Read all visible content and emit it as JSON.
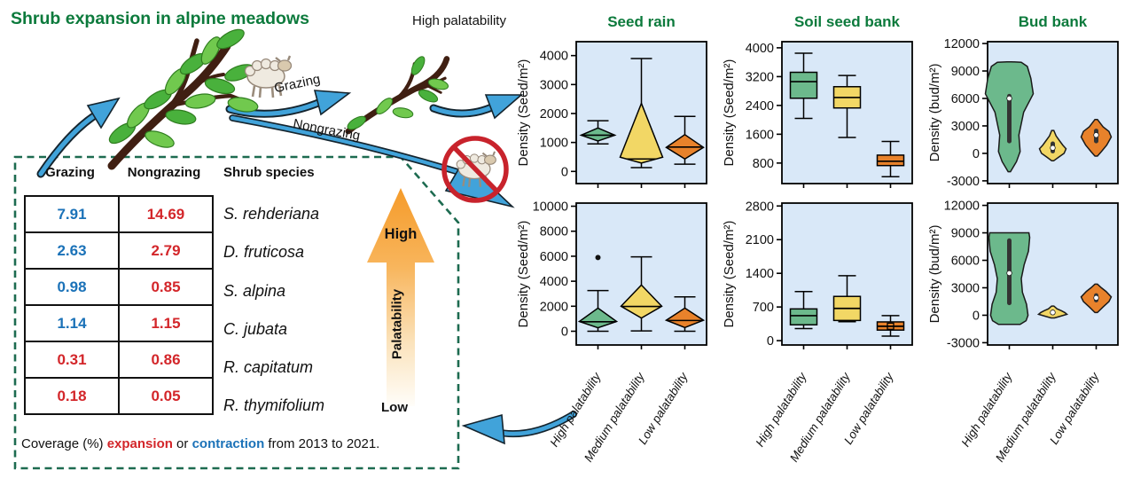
{
  "title": "Shrub expansion in alpine meadows",
  "diagram": {
    "grazing_label": "Grazing",
    "nongrazing_label": "Nongrazing",
    "high_palatability_label": "High palatability",
    "icons": [
      "sheep-icon",
      "no-grazing-icon",
      "shrub-lush",
      "shrub-grazed",
      "blue-arrows"
    ]
  },
  "table": {
    "headers": [
      "Grazing",
      "Nongrazing",
      "Shrub species"
    ],
    "rows": [
      {
        "grazing": "7.91",
        "grazing_color": "blue",
        "nongrazing": "14.69",
        "nongrazing_color": "red",
        "species": "S. rehderiana"
      },
      {
        "grazing": "2.63",
        "grazing_color": "blue",
        "nongrazing": "2.79",
        "nongrazing_color": "red",
        "species": "D. fruticosa"
      },
      {
        "grazing": "0.98",
        "grazing_color": "blue",
        "nongrazing": "0.85",
        "nongrazing_color": "red",
        "species": "S. alpina"
      },
      {
        "grazing": "1.14",
        "grazing_color": "blue",
        "nongrazing": "1.15",
        "nongrazing_color": "red",
        "species": "C. jubata"
      },
      {
        "grazing": "0.31",
        "grazing_color": "red",
        "nongrazing": "0.86",
        "nongrazing_color": "red",
        "species": "R. capitatum"
      },
      {
        "grazing": "0.18",
        "grazing_color": "red",
        "nongrazing": "0.05",
        "nongrazing_color": "red",
        "species": "R. thymifolium"
      }
    ]
  },
  "palatability_arrow": {
    "high": "High",
    "axis": "Palatability",
    "low": "Low"
  },
  "caption": {
    "prefix": "Coverage (%) ",
    "expansion_word": "expansion",
    "or_word": " or ",
    "contraction_word": "contraction",
    "suffix": " from 2013 to 2021."
  },
  "colors": {
    "title_green": "#0C7A3C",
    "dashed_border": "#1D6B50",
    "value_red": "#D3262A",
    "value_blue": "#1B72B8",
    "arrow_blue": "#41A3DA",
    "panel_bg": "#D9E8F8",
    "high_series": "#6CB98C",
    "medium_series": "#F2D765",
    "low_series": "#E8822B"
  },
  "chart_data": {
    "type": "mixed-box-violin",
    "grid": "2 rows (grazing top, nongrazing bottom) x 3 columns",
    "categories": [
      "High palatability",
      "Medium palatability",
      "Low palatability"
    ],
    "columns": [
      {
        "title": "Seed rain",
        "panels": [
          {
            "row": "top",
            "kind": "diamond",
            "ylabel": "Density (Seed/m²)",
            "ylim": [
              -420,
              4480
            ],
            "yticks": [
              0,
              1000,
              2000,
              3000,
              4000
            ],
            "series": [
              {
                "name": "High palatability",
                "color": "#6CB98C",
                "hw": 19,
                "whisker": [
                  950,
                  1750
                ],
                "shape": [
                  1050,
                  1500
                ],
                "widest": 1250,
                "median": 1250
              },
              {
                "name": "Medium palatability",
                "color": "#F2D765",
                "hw": 24,
                "whisker": [
                  130,
                  3900
                ],
                "shape": [
                  290,
                  2350
                ],
                "widest": 490,
                "median": 430
              },
              {
                "name": "Low palatability",
                "color": "#E8822B",
                "hw": 21,
                "whisker": [
                  250,
                  1900
                ],
                "shape": [
                  430,
                  1270
                ],
                "widest": 830,
                "median": 840
              }
            ]
          },
          {
            "row": "bottom",
            "kind": "diamond",
            "ylabel": "Density (Seed/m²)",
            "ylim": [
              -1100,
              10250
            ],
            "yticks": [
              0,
              2000,
              4000,
              6000,
              8000,
              10000
            ],
            "series": [
              {
                "name": "High palatability",
                "color": "#6CB98C",
                "hw": 21,
                "whisker": [
                  0,
                  3250
                ],
                "shape": [
                  280,
                  1850
                ],
                "widest": 780,
                "median": 760,
                "outliers": [
                  5900
                ]
              },
              {
                "name": "Medium palatability",
                "color": "#F2D765",
                "hw": 23,
                "whisker": [
                  30,
                  5950
                ],
                "shape": [
                  1050,
                  3700
                ],
                "widest": 2000,
                "median": 1980
              },
              {
                "name": "Low palatability",
                "color": "#E8822B",
                "hw": 21,
                "whisker": [
                  0,
                  2750
                ],
                "shape": [
                  300,
                  1850
                ],
                "widest": 880,
                "median": 860
              }
            ]
          }
        ]
      },
      {
        "title": "Soil seed bank",
        "panels": [
          {
            "row": "top",
            "kind": "box",
            "ylabel": "Density (Seed/m²)",
            "ylim": [
              230,
              4170
            ],
            "yticks": [
              800,
              1600,
              2400,
              3200,
              4000
            ],
            "series": [
              {
                "name": "High palatability",
                "color": "#6CB98C",
                "box": [
                  2600,
                  3320
                ],
                "median": 3060,
                "whisker": [
                  2040,
                  3850
                ]
              },
              {
                "name": "Medium palatability",
                "color": "#F2D765",
                "box": [
                  2330,
                  2920
                ],
                "median": 2620,
                "whisker": [
                  1510,
                  3230
                ]
              },
              {
                "name": "Low palatability",
                "color": "#E8822B",
                "box": [
                  730,
                  1020
                ],
                "median": 850,
                "whisker": [
                  420,
                  1400
                ]
              }
            ]
          },
          {
            "row": "bottom",
            "kind": "box",
            "ylabel": "Density (Seed/m²)",
            "ylim": [
              -90,
              2860
            ],
            "yticks": [
              0,
              700,
              1400,
              2100,
              2800
            ],
            "series": [
              {
                "name": "High palatability",
                "color": "#6CB98C",
                "box": [
                  330,
                  660
                ],
                "median": 520,
                "whisker": [
                  250,
                  1020
                ]
              },
              {
                "name": "Medium palatability",
                "color": "#F2D765",
                "box": [
                  420,
                  920
                ],
                "median": 670,
                "whisker": [
                  395,
                  1350
                ]
              },
              {
                "name": "Low palatability",
                "color": "#E8822B",
                "box": [
                  220,
                  390
                ],
                "median": 300,
                "mean": 300,
                "whisker": [
                  95,
                  520
                ]
              }
            ]
          }
        ]
      },
      {
        "title": "Bud bank",
        "panels": [
          {
            "row": "top",
            "kind": "violin",
            "ylabel": "Density (bud/m²)",
            "ylim": [
              -3300,
              12200
            ],
            "yticks": [
              -3000,
              0,
              3000,
              6000,
              9000,
              12000
            ],
            "series": [
              {
                "name": "High palatability",
                "color": "#6CB98C",
                "hw": 27,
                "median": 6000,
                "iqr": [
                  1100,
                  6500
                ],
                "profile": [
                  [
                    -2000,
                    0.05
                  ],
                  [
                    -900,
                    0.3
                  ],
                  [
                    200,
                    0.45
                  ],
                  [
                    2000,
                    0.4
                  ],
                  [
                    4500,
                    0.6
                  ],
                  [
                    6500,
                    1.0
                  ],
                  [
                    8200,
                    0.9
                  ],
                  [
                    9500,
                    0.75
                  ],
                  [
                    9950,
                    0.5
                  ],
                  [
                    10000,
                    0.1
                  ]
                ]
              },
              {
                "name": "Medium palatability",
                "color": "#F2D765",
                "hw": 15,
                "median": 600,
                "iqr": [
                  0,
                  1300
                ],
                "profile": [
                  [
                    -800,
                    0.08
                  ],
                  [
                    -400,
                    0.45
                  ],
                  [
                    0,
                    0.85
                  ],
                  [
                    500,
                    1.0
                  ],
                  [
                    900,
                    0.75
                  ],
                  [
                    1400,
                    0.5
                  ],
                  [
                    1900,
                    0.25
                  ],
                  [
                    2500,
                    0.08
                  ]
                ]
              },
              {
                "name": "Low palatability",
                "color": "#E8822B",
                "hw": 17,
                "median": 2000,
                "iqr": [
                  1100,
                  2700
                ],
                "profile": [
                  [
                    -300,
                    0.08
                  ],
                  [
                    200,
                    0.35
                  ],
                  [
                    900,
                    0.7
                  ],
                  [
                    1800,
                    1.0
                  ],
                  [
                    2400,
                    0.85
                  ],
                  [
                    2900,
                    0.45
                  ],
                  [
                    3700,
                    0.08
                  ]
                ]
              }
            ]
          },
          {
            "row": "bottom",
            "kind": "violin",
            "ylabel": "Density (bud/m²)",
            "ylim": [
              -3250,
              12250
            ],
            "yticks": [
              -3000,
              0,
              3000,
              6000,
              9000,
              12000
            ],
            "series": [
              {
                "name": "High palatability",
                "color": "#6CB98C",
                "hw": 27,
                "median": 4600,
                "iqr": [
                  1100,
                  8400
                ],
                "profile": [
                  [
                    -1000,
                    0.45
                  ],
                  [
                    -600,
                    0.7
                  ],
                  [
                    0,
                    0.78
                  ],
                  [
                    1200,
                    0.72
                  ],
                  [
                    2500,
                    0.55
                  ],
                  [
                    4000,
                    0.5
                  ],
                  [
                    5500,
                    0.62
                  ],
                  [
                    7000,
                    0.8
                  ],
                  [
                    8500,
                    0.85
                  ],
                  [
                    9000,
                    0.82
                  ]
                ]
              },
              {
                "name": "Medium palatability",
                "color": "#F2D765",
                "hw": 16,
                "median": 300,
                "iqr": [
                  80,
                  600
                ],
                "profile": [
                  [
                    -300,
                    0.12
                  ],
                  [
                    -100,
                    0.55
                  ],
                  [
                    100,
                    1.0
                  ],
                  [
                    300,
                    0.85
                  ],
                  [
                    500,
                    0.6
                  ],
                  [
                    700,
                    0.3
                  ],
                  [
                    1000,
                    0.08
                  ]
                ]
              },
              {
                "name": "Low palatability",
                "color": "#E8822B",
                "hw": 17,
                "median": 1900,
                "iqr": [
                  1400,
                  2400
                ],
                "profile": [
                  [
                    300,
                    0.08
                  ],
                  [
                    900,
                    0.45
                  ],
                  [
                    1500,
                    0.85
                  ],
                  [
                    2000,
                    1.0
                  ],
                  [
                    2600,
                    0.65
                  ],
                  [
                    3000,
                    0.35
                  ],
                  [
                    3400,
                    0.08
                  ]
                ]
              }
            ]
          }
        ]
      }
    ]
  }
}
